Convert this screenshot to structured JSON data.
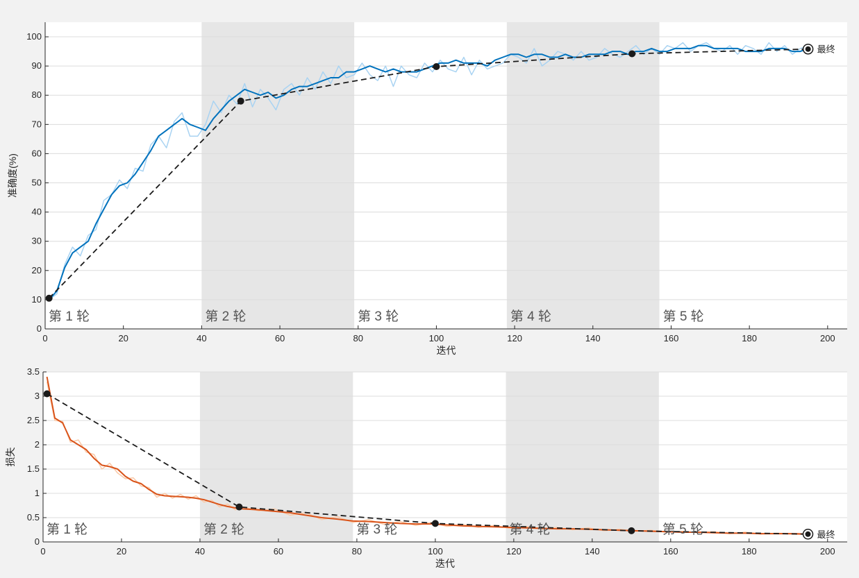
{
  "chart_data": [
    {
      "type": "line",
      "xlabel": "迭代",
      "ylabel": "准确度(%)",
      "xlim": [
        0,
        205
      ],
      "ylim": [
        0,
        105
      ],
      "xticks": [
        0,
        20,
        40,
        60,
        80,
        100,
        120,
        140,
        160,
        180,
        200
      ],
      "yticks": [
        0,
        10,
        20,
        30,
        40,
        50,
        60,
        70,
        80,
        90,
        100
      ],
      "grid": true,
      "epoch_bands": [
        {
          "label": "第 1 轮",
          "start": 0,
          "end": 40,
          "shaded": false
        },
        {
          "label": "第 2 轮",
          "start": 40,
          "end": 79,
          "shaded": true
        },
        {
          "label": "第 3 轮",
          "start": 79,
          "end": 118,
          "shaded": false
        },
        {
          "label": "第 4 轮",
          "start": 118,
          "end": 157,
          "shaded": true
        },
        {
          "label": "第 5 轮",
          "start": 157,
          "end": 205,
          "shaded": false
        }
      ],
      "colors": {
        "smoothed": "#0072bd",
        "raw": "#a9d3f2",
        "validation": "#1a1a1a"
      },
      "series": [
        {
          "kind": "smoothed",
          "x": [
            1,
            3,
            5,
            7,
            9,
            11,
            13,
            15,
            17,
            19,
            21,
            23,
            25,
            27,
            29,
            31,
            33,
            35,
            37,
            39,
            41,
            43,
            45,
            47,
            49,
            51,
            53,
            55,
            57,
            59,
            61,
            63,
            65,
            67,
            69,
            71,
            73,
            75,
            77,
            79,
            81,
            83,
            85,
            87,
            89,
            91,
            93,
            95,
            97,
            99,
            101,
            103,
            105,
            107,
            109,
            111,
            113,
            115,
            117,
            119,
            121,
            123,
            125,
            127,
            129,
            131,
            133,
            135,
            137,
            139,
            141,
            143,
            145,
            147,
            149,
            151,
            153,
            155,
            157,
            159,
            161,
            163,
            165,
            167,
            169,
            171,
            173,
            175,
            177,
            179,
            181,
            183,
            185,
            187,
            189,
            191,
            193,
            195
          ],
          "values": [
            10,
            13,
            21,
            26,
            28,
            30,
            36,
            41,
            46,
            49,
            50,
            53,
            57,
            61,
            66,
            68,
            70,
            72,
            70,
            69,
            68,
            72,
            75,
            78,
            80,
            82,
            81,
            80,
            81,
            79,
            80,
            82,
            83,
            83,
            84,
            85,
            86,
            86,
            88,
            88,
            89,
            90,
            89,
            88,
            89,
            88,
            88,
            88,
            89,
            90,
            91,
            91,
            92,
            91,
            91,
            91,
            90,
            92,
            93,
            94,
            94,
            93,
            94,
            94,
            93,
            93,
            94,
            93,
            93,
            94,
            94,
            94,
            95,
            95,
            94,
            95,
            95,
            96,
            95,
            95,
            96,
            96,
            96,
            97,
            97,
            96,
            96,
            96,
            96,
            95,
            95,
            95,
            96,
            96,
            96,
            95,
            95,
            96
          ]
        },
        {
          "kind": "raw",
          "x": [
            1,
            3,
            5,
            7,
            9,
            11,
            13,
            15,
            17,
            19,
            21,
            23,
            25,
            27,
            29,
            31,
            33,
            35,
            37,
            39,
            41,
            43,
            45,
            47,
            49,
            51,
            53,
            55,
            57,
            59,
            61,
            63,
            65,
            67,
            69,
            71,
            73,
            75,
            77,
            79,
            81,
            83,
            85,
            87,
            89,
            91,
            93,
            95,
            97,
            99,
            101,
            103,
            105,
            107,
            109,
            111,
            113,
            115,
            117,
            119,
            121,
            123,
            125,
            127,
            129,
            131,
            133,
            135,
            137,
            139,
            141,
            143,
            145,
            147,
            149,
            151,
            153,
            155,
            157,
            159,
            161,
            163,
            165,
            167,
            169,
            171,
            173,
            175,
            177,
            179,
            181,
            183,
            185,
            187,
            189,
            191,
            193,
            195
          ],
          "values": [
            10,
            12,
            22,
            28,
            25,
            32,
            34,
            44,
            46,
            51,
            48,
            55,
            54,
            63,
            66,
            62,
            71,
            74,
            66,
            66,
            70,
            78,
            74,
            80,
            77,
            84,
            76,
            82,
            79,
            75,
            82,
            84,
            80,
            86,
            82,
            88,
            84,
            90,
            86,
            87,
            91,
            87,
            85,
            90,
            83,
            90,
            87,
            86,
            91,
            88,
            92,
            89,
            88,
            93,
            87,
            92,
            89,
            90,
            91,
            94,
            93,
            91,
            96,
            90,
            92,
            95,
            94,
            92,
            95,
            92,
            93,
            96,
            94,
            93,
            95,
            97,
            94,
            96,
            94,
            97,
            96,
            98,
            95,
            97,
            98,
            96,
            95,
            97,
            94,
            97,
            96,
            94,
            98,
            95,
            97,
            94,
            96,
            97
          ]
        },
        {
          "kind": "validation",
          "x": [
            1,
            50,
            100,
            150,
            195
          ],
          "values": [
            10.5,
            78,
            89.8,
            94.2,
            95.8
          ]
        }
      ],
      "final_label": "最终"
    },
    {
      "type": "line",
      "xlabel": "迭代",
      "ylabel": "损失",
      "xlim": [
        0,
        205
      ],
      "ylim": [
        0,
        3.5
      ],
      "xticks": [
        0,
        20,
        40,
        60,
        80,
        100,
        120,
        140,
        160,
        180,
        200
      ],
      "yticks": [
        0,
        0.5,
        1,
        1.5,
        2,
        2.5,
        3,
        3.5
      ],
      "grid": true,
      "epoch_bands": [
        {
          "label": "第 1 轮",
          "start": 0,
          "end": 40,
          "shaded": false
        },
        {
          "label": "第 2 轮",
          "start": 40,
          "end": 79,
          "shaded": true
        },
        {
          "label": "第 3 轮",
          "start": 79,
          "end": 118,
          "shaded": false
        },
        {
          "label": "第 4 轮",
          "start": 118,
          "end": 157,
          "shaded": true
        },
        {
          "label": "第 5 轮",
          "start": 157,
          "end": 205,
          "shaded": false
        }
      ],
      "colors": {
        "smoothed": "#d95319",
        "raw": "#f9c9a8",
        "validation": "#1a1a1a"
      },
      "series": [
        {
          "kind": "smoothed",
          "x": [
            1,
            3,
            5,
            7,
            9,
            11,
            13,
            15,
            17,
            19,
            21,
            23,
            25,
            27,
            29,
            31,
            33,
            35,
            37,
            39,
            41,
            43,
            45,
            47,
            49,
            51,
            55,
            59,
            63,
            67,
            71,
            75,
            79,
            83,
            87,
            91,
            95,
            99,
            103,
            107,
            111,
            115,
            119,
            123,
            127,
            131,
            135,
            139,
            143,
            147,
            151,
            155,
            159,
            163,
            167,
            171,
            175,
            179,
            183,
            187,
            191,
            195
          ],
          "values": [
            3.4,
            2.55,
            2.45,
            2.1,
            2.0,
            1.9,
            1.72,
            1.58,
            1.55,
            1.5,
            1.35,
            1.25,
            1.2,
            1.08,
            0.98,
            0.95,
            0.94,
            0.93,
            0.92,
            0.9,
            0.87,
            0.82,
            0.77,
            0.73,
            0.7,
            0.68,
            0.66,
            0.63,
            0.6,
            0.55,
            0.5,
            0.47,
            0.43,
            0.42,
            0.4,
            0.38,
            0.37,
            0.37,
            0.35,
            0.33,
            0.32,
            0.31,
            0.3,
            0.29,
            0.28,
            0.27,
            0.27,
            0.26,
            0.25,
            0.24,
            0.23,
            0.22,
            0.21,
            0.2,
            0.2,
            0.19,
            0.18,
            0.18,
            0.17,
            0.17,
            0.17,
            0.16
          ]
        },
        {
          "kind": "raw",
          "x": [
            1,
            3,
            5,
            7,
            9,
            11,
            13,
            15,
            17,
            19,
            21,
            23,
            25,
            27,
            29,
            31,
            33,
            35,
            37,
            39,
            41,
            43,
            45,
            47,
            49,
            51,
            55,
            59,
            63,
            67,
            71,
            75,
            79,
            83,
            87,
            91,
            95,
            99,
            103,
            107,
            111,
            115,
            119,
            123,
            127,
            131,
            135,
            139,
            143,
            147,
            151,
            155,
            159,
            163,
            167,
            171,
            175,
            179,
            183,
            187,
            191,
            195
          ],
          "values": [
            3.3,
            2.5,
            2.48,
            2.05,
            2.1,
            1.85,
            1.8,
            1.5,
            1.62,
            1.42,
            1.3,
            1.32,
            1.15,
            1.12,
            0.92,
            1.0,
            0.9,
            0.98,
            0.88,
            0.95,
            0.82,
            0.86,
            0.72,
            0.78,
            0.66,
            0.72,
            0.64,
            0.68,
            0.55,
            0.6,
            0.46,
            0.52,
            0.4,
            0.46,
            0.36,
            0.42,
            0.34,
            0.4,
            0.32,
            0.36,
            0.3,
            0.34,
            0.28,
            0.32,
            0.26,
            0.3,
            0.25,
            0.29,
            0.23,
            0.26,
            0.22,
            0.24,
            0.2,
            0.22,
            0.19,
            0.21,
            0.17,
            0.2,
            0.16,
            0.18,
            0.16,
            0.15
          ]
        },
        {
          "kind": "validation",
          "x": [
            1,
            50,
            100,
            150,
            195
          ],
          "values": [
            3.05,
            0.72,
            0.38,
            0.23,
            0.16
          ]
        }
      ],
      "final_label": "最终"
    }
  ]
}
